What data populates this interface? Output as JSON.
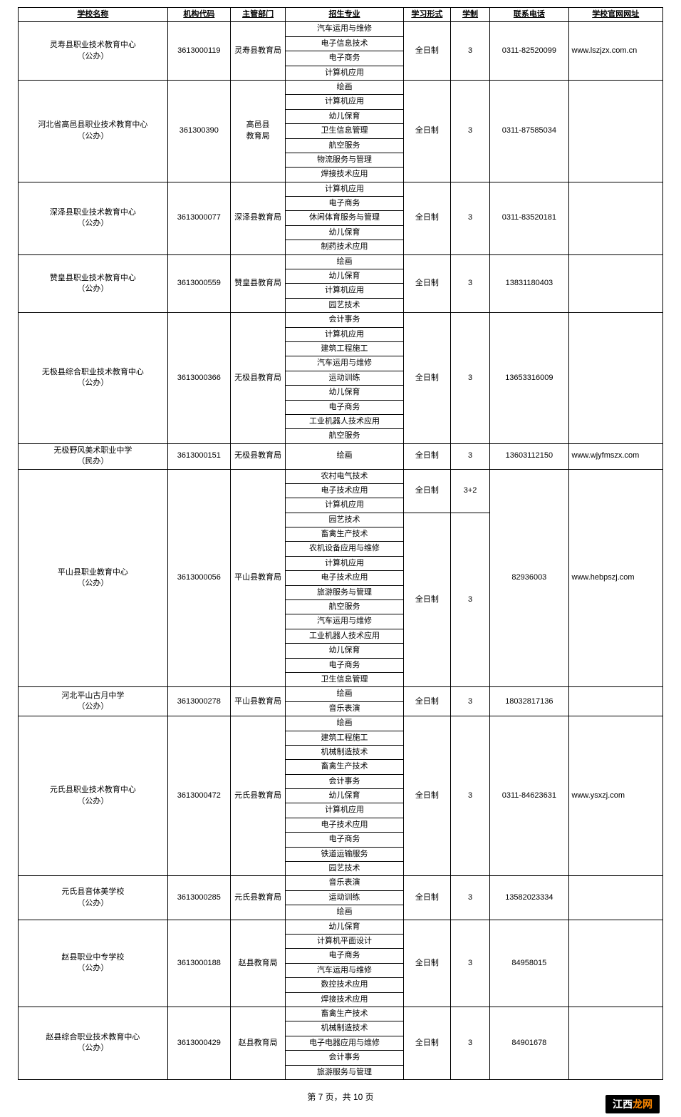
{
  "headers": {
    "school": "学校名称",
    "code": "机构代码",
    "dept": "主管部门",
    "major": "招生专业",
    "form": "学习形式",
    "duration": "学制",
    "phone": "联系电话",
    "url": "学校官网网址"
  },
  "rows": [
    {
      "school": "灵寿县职业技术教育中心\n（公办）",
      "code": "3613000119",
      "dept": "灵寿县教育局",
      "majors": [
        "汽车运用与维修",
        "电子信息技术",
        "电子商务",
        "计算机应用"
      ],
      "form": "全日制",
      "duration": "3",
      "phone": "0311-82520099",
      "url": "www.lszjzx.com.cn"
    },
    {
      "school": "河北省高邑县职业技术教育中心\n（公办）",
      "code": "361300390",
      "dept": "高邑县\n教育局",
      "majors": [
        "绘画",
        "计算机应用",
        "幼儿保育",
        "卫生信息管理",
        "航空服务",
        "物流服务与管理",
        "焊接技术应用"
      ],
      "form": "全日制",
      "duration": "3",
      "phone": "0311-87585034",
      "url": ""
    },
    {
      "school": "深泽县职业技术教育中心\n（公办）",
      "code": "3613000077",
      "dept": "深泽县教育局",
      "majors": [
        "计算机应用",
        "电子商务",
        "休闲体育服务与管理",
        "幼儿保育",
        "制药技术应用"
      ],
      "form": "全日制",
      "duration": "3",
      "phone": "0311-83520181",
      "url": ""
    },
    {
      "school": "赞皇县职业技术教育中心\n（公办）",
      "code": "3613000559",
      "dept": "赞皇县教育局",
      "majors": [
        "绘画",
        "幼儿保育",
        "计算机应用",
        "园艺技术"
      ],
      "form": "全日制",
      "duration": "3",
      "phone": "13831180403",
      "url": ""
    },
    {
      "school": "无极县综合职业技术教育中心\n（公办）",
      "code": "3613000366",
      "dept": "无极县教育局",
      "majors": [
        "会计事务",
        "计算机应用",
        "建筑工程施工",
        "汽车运用与维修",
        "运动训练",
        "幼儿保育",
        "电子商务",
        "工业机器人技术应用",
        "航空服务"
      ],
      "form": "全日制",
      "duration": "3",
      "phone": "13653316009",
      "url": ""
    },
    {
      "school": "无极野风美术职业中学\n（民办）",
      "code": "3613000151",
      "dept": "无极县教育局",
      "majors": [
        "绘画"
      ],
      "form": "全日制",
      "duration": "3",
      "phone": "13603112150",
      "url": "www.wjyfmszx.com"
    },
    {
      "school": "平山县职业教育中心\n（公办）",
      "code": "3613000056",
      "dept": "平山县教育局",
      "majorGroups": [
        {
          "majors": [
            "农村电气技术",
            "电子技术应用",
            "计算机应用"
          ],
          "form": "全日制",
          "duration": "3+2"
        },
        {
          "majors": [
            "园艺技术",
            "畜禽生产技术",
            "农机设备应用与维修",
            "计算机应用",
            "电子技术应用",
            "旅游服务与管理",
            "航空服务",
            "汽车运用与维修",
            "工业机器人技术应用",
            "幼儿保育",
            "电子商务",
            "卫生信息管理"
          ],
          "form": "全日制",
          "duration": "3"
        }
      ],
      "phone": "82936003",
      "url": "www.hebpszj.com"
    },
    {
      "school": "河北平山古月中学\n（公办）",
      "code": "3613000278",
      "dept": "平山县教育局",
      "majors": [
        "绘画",
        "音乐表演"
      ],
      "form": "全日制",
      "duration": "3",
      "phone": "18032817136",
      "url": ""
    },
    {
      "school": "元氏县职业技术教育中心\n（公办）",
      "code": "3613000472",
      "dept": "元氏县教育局",
      "majors": [
        "绘画",
        "建筑工程施工",
        "机械制造技术",
        "畜禽生产技术",
        "会计事务",
        "幼儿保育",
        "计算机应用",
        "电子技术应用",
        "电子商务",
        "铁道运输服务",
        "园艺技术"
      ],
      "form": "全日制",
      "duration": "3",
      "phone": "0311-84623631",
      "url": "www.ysxzj.com"
    },
    {
      "school": "元氏县音体美学校\n（公办）",
      "code": "3613000285",
      "dept": "元氏县教育局",
      "majors": [
        "音乐表演",
        "运动训练",
        "绘画"
      ],
      "form": "全日制",
      "duration": "3",
      "phone": "13582023334",
      "url": ""
    },
    {
      "school": "赵县职业中专学校\n（公办）",
      "code": "3613000188",
      "dept": "赵县教育局",
      "majors": [
        "幼儿保育",
        "计算机平面设计",
        "电子商务",
        "汽车运用与维修",
        "数控技术应用",
        "焊接技术应用"
      ],
      "form": "全日制",
      "duration": "3",
      "phone": "84958015",
      "url": ""
    },
    {
      "school": "赵县综合职业技术教育中心\n（公办）",
      "code": "3613000429",
      "dept": "赵县教育局",
      "majors": [
        "畜禽生产技术",
        "机械制造技术",
        "电子电器应用与维修",
        "会计事务",
        "旅游服务与管理"
      ],
      "form": "全日制",
      "duration": "3",
      "phone": "84901678",
      "url": ""
    }
  ],
  "footer": "第 7 页，共 10 页",
  "watermark": {
    "p1": "江西",
    "p2": "龙网"
  }
}
